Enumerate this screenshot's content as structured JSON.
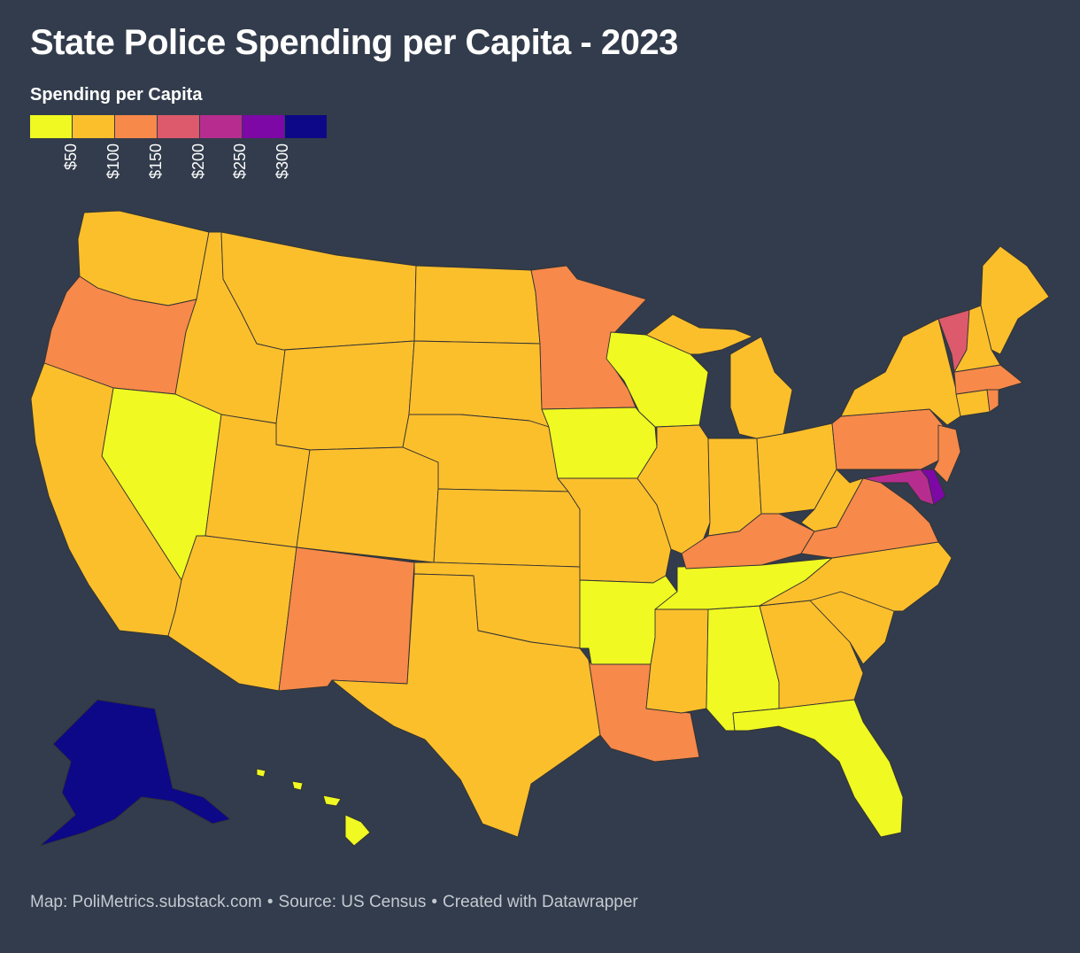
{
  "title": "State Police Spending per Capita - 2023",
  "legend": {
    "title": "Spending per Capita",
    "swatches": [
      "#f0f921",
      "#fcbf2c",
      "#f7894a",
      "#dc5a6b",
      "#b72d8f",
      "#7d08a6",
      "#0d0887"
    ],
    "ticks": [
      "$50",
      "$100",
      "$150",
      "$200",
      "$250",
      "$300"
    ]
  },
  "map_data": {
    "type": "choropleth",
    "region": "United States",
    "bins": [
      {
        "range": "< $50",
        "color": "#f0f921",
        "states": [
          "NV",
          "WI",
          "IA",
          "AR",
          "TN",
          "AL",
          "FL",
          "HI"
        ]
      },
      {
        "range": "$50 - $100",
        "color": "#fcbf2c",
        "states": [
          "WA",
          "ID",
          "MT",
          "ND",
          "SD",
          "WY",
          "NE",
          "UT",
          "CO",
          "KS",
          "CA",
          "AZ",
          "OK",
          "TX",
          "MO",
          "IL",
          "IN",
          "MI",
          "OH",
          "WV",
          "NC",
          "SC",
          "GA",
          "MS",
          "NY",
          "ME",
          "NH",
          "CT"
        ]
      },
      {
        "range": "$100 - $150",
        "color": "#f7894a",
        "states": [
          "OR",
          "MN",
          "NM",
          "LA",
          "KY",
          "VA",
          "PA",
          "NJ",
          "MA",
          "RI"
        ]
      },
      {
        "range": "$150 - $200",
        "color": "#dc5a6b",
        "states": [
          "VT"
        ]
      },
      {
        "range": "$200 - $250",
        "color": "#b72d8f",
        "states": [
          "MD"
        ]
      },
      {
        "range": "$250 - $300",
        "color": "#7d08a6",
        "states": [
          "DE"
        ]
      },
      {
        "range": "> $300",
        "color": "#0d0887",
        "states": [
          "AK"
        ]
      }
    ]
  },
  "footer": {
    "map_credit": "Map: PoliMetrics.substack.com",
    "source": "Source: US Census",
    "created": "Created with Datawrapper",
    "separator": "•"
  }
}
